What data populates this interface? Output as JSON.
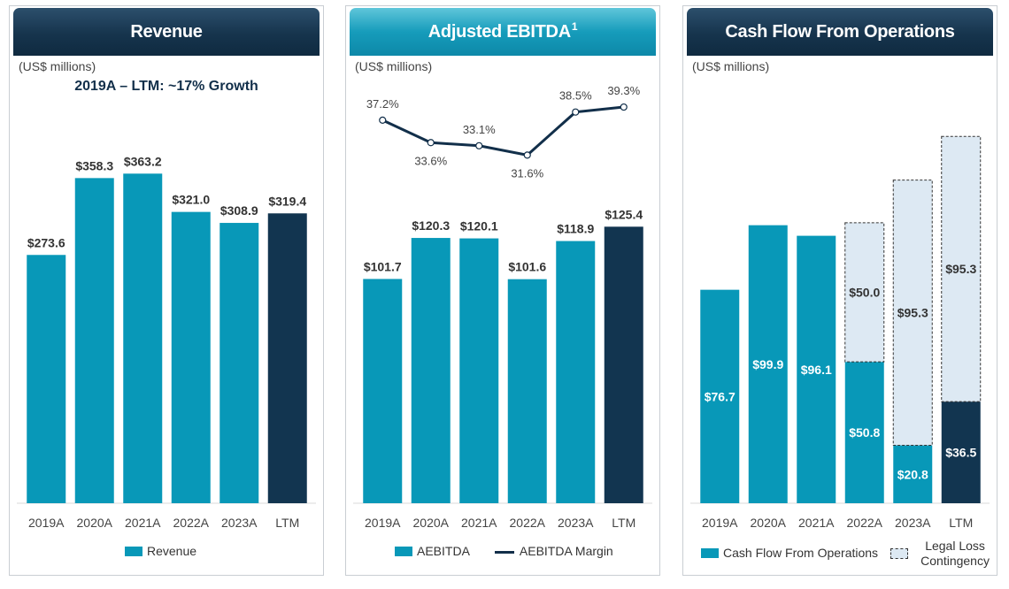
{
  "colors": {
    "bar": "#0898b8",
    "ltm_bar": "#123550",
    "line": "#122f4a",
    "contingency_fill": "#dde9f3",
    "header_dark": "#16344d",
    "header_accent": "#169cbb"
  },
  "panels": [
    {
      "title": "Revenue",
      "title_sup": "",
      "units": "(US$ millions)",
      "subtitle": "2019A – LTM: ~17% Growth",
      "legend": [
        {
          "label": "Revenue",
          "type": "bar"
        }
      ]
    },
    {
      "title": "Adjusted EBITDA",
      "title_sup": "1",
      "units": "(US$ millions)",
      "legend": [
        {
          "label": "AEBITDA",
          "type": "bar"
        },
        {
          "label": "AEBITDA Margin",
          "type": "line"
        }
      ]
    },
    {
      "title": "Cash Flow From Operations",
      "title_sup": "",
      "units": "(US$ millions)",
      "legend": [
        {
          "label": "Cash Flow From Operations",
          "type": "bar"
        },
        {
          "label": "Legal Loss Contingency",
          "type": "dashed"
        }
      ]
    }
  ],
  "chart_data": [
    {
      "type": "bar",
      "title": "Revenue",
      "categories": [
        "2019A",
        "2020A",
        "2021A",
        "2022A",
        "2023A",
        "LTM"
      ],
      "series": [
        {
          "name": "Revenue",
          "values": [
            273.6,
            358.3,
            363.2,
            321.0,
            308.9,
            319.4
          ]
        }
      ],
      "value_labels": [
        "$273.6",
        "$358.3",
        "$363.2",
        "$321.0",
        "$308.9",
        "$319.4"
      ],
      "ylim": [
        0,
        460
      ]
    },
    {
      "type": "bar",
      "title": "Adjusted EBITDA",
      "categories": [
        "2019A",
        "2020A",
        "2021A",
        "2022A",
        "2023A",
        "LTM"
      ],
      "series": [
        {
          "name": "AEBITDA",
          "values": [
            101.7,
            120.3,
            120.1,
            101.6,
            118.9,
            125.4
          ]
        },
        {
          "name": "AEBITDA Margin",
          "values": [
            37.2,
            33.6,
            33.1,
            31.6,
            38.5,
            39.3
          ],
          "unit": "%"
        }
      ],
      "value_labels": [
        "$101.7",
        "$120.3",
        "$120.1",
        "$101.6",
        "$118.9",
        "$125.4"
      ],
      "margin_labels": [
        "37.2%",
        "33.6%",
        "33.1%",
        "31.6%",
        "38.5%",
        "39.3%"
      ],
      "ylim": [
        0,
        220
      ],
      "margin_ylim": [
        24,
        42
      ]
    },
    {
      "type": "bar",
      "stacked": true,
      "title": "Cash Flow From Operations",
      "categories": [
        "2019A",
        "2020A",
        "2021A",
        "2022A",
        "2023A",
        "LTM"
      ],
      "series": [
        {
          "name": "Cash Flow From Operations",
          "values": [
            76.7,
            99.9,
            96.1,
            50.8,
            20.8,
            36.5
          ]
        },
        {
          "name": "Legal Loss Contingency",
          "values": [
            0,
            0,
            0,
            50.0,
            95.3,
            95.3
          ]
        }
      ],
      "cfo_labels": [
        "$76.7",
        "$99.9",
        "$96.1",
        "$50.8",
        "$20.8",
        "$36.5"
      ],
      "contingency_labels": [
        "",
        "",
        "",
        "$50.0",
        "$95.3",
        "$95.3"
      ],
      "ylim": [
        0,
        150
      ]
    }
  ]
}
